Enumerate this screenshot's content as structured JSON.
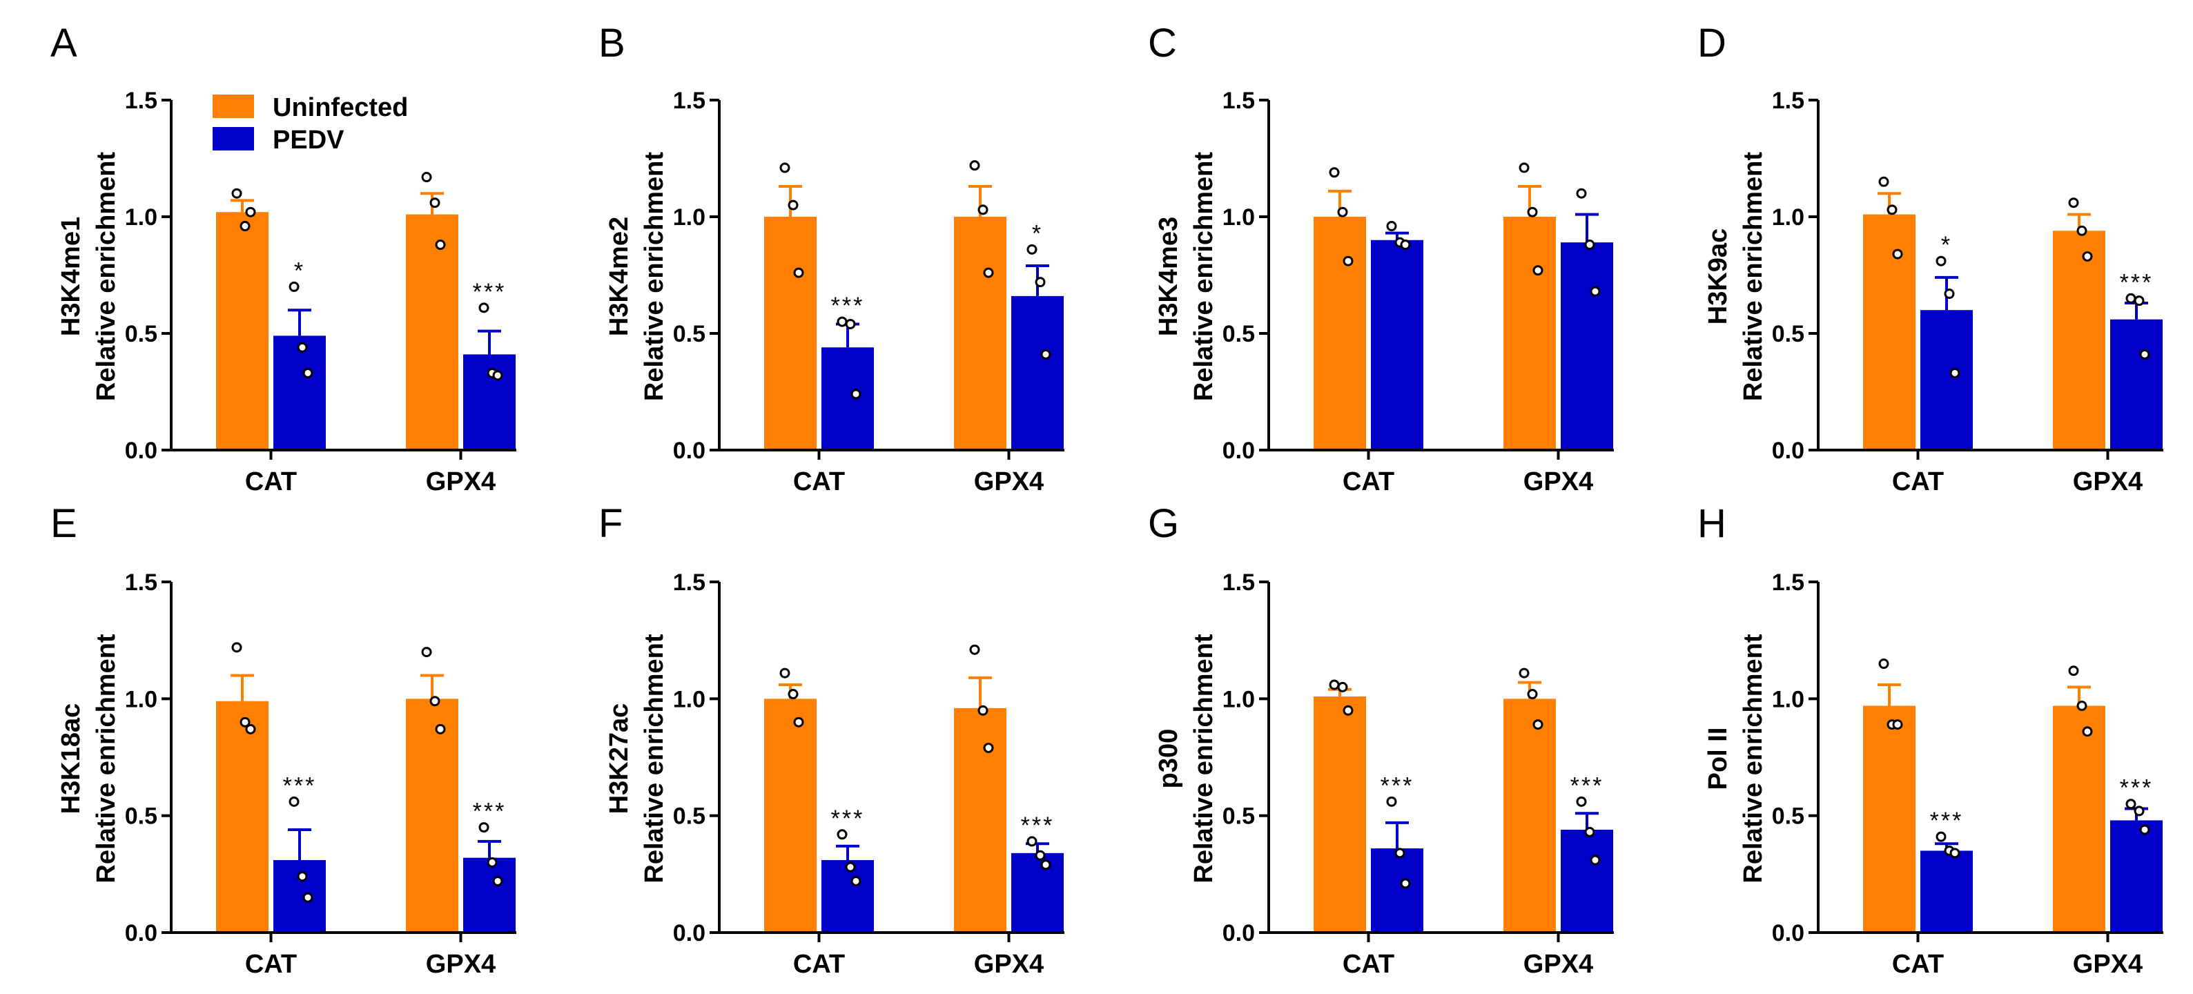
{
  "figure": {
    "legend": {
      "series_0": "Uninfected",
      "series_1": "PEDV"
    },
    "colors": {
      "uninfected": "#ff8000",
      "pedv": "#0000c8"
    }
  },
  "chart_data": [
    {
      "type": "bar",
      "panel": "A",
      "ylabel_top": "H3K4me1",
      "ylabel": "Relative enrichment",
      "ylim": [
        0,
        1.5
      ],
      "yticks": [
        "0.0",
        "0.5",
        "1.0",
        "1.5"
      ],
      "categories": [
        "CAT",
        "GPX4"
      ],
      "series": [
        {
          "name": "Uninfected",
          "values": [
            1.02,
            1.01
          ],
          "errors": [
            0.05,
            0.09
          ],
          "points": [
            [
              1.1,
              0.96,
              1.02
            ],
            [
              1.17,
              1.06,
              0.88
            ]
          ],
          "sig": [
            "",
            ""
          ]
        },
        {
          "name": "PEDV",
          "values": [
            0.49,
            0.41
          ],
          "errors": [
            0.11,
            0.1
          ],
          "points": [
            [
              0.7,
              0.44,
              0.33
            ],
            [
              0.61,
              0.33,
              0.32
            ]
          ],
          "sig": [
            "*",
            "***"
          ]
        }
      ]
    },
    {
      "type": "bar",
      "panel": "B",
      "ylabel_top": "H3K4me2",
      "ylabel": "Relative enrichment",
      "ylim": [
        0,
        1.5
      ],
      "yticks": [
        "0.0",
        "0.5",
        "1.0",
        "1.5"
      ],
      "categories": [
        "CAT",
        "GPX4"
      ],
      "series": [
        {
          "name": "Uninfected",
          "values": [
            1.0,
            1.0
          ],
          "errors": [
            0.13,
            0.13
          ],
          "points": [
            [
              1.21,
              1.05,
              0.76
            ],
            [
              1.22,
              1.03,
              0.76
            ]
          ],
          "sig": [
            "",
            ""
          ]
        },
        {
          "name": "PEDV",
          "values": [
            0.44,
            0.66
          ],
          "errors": [
            0.1,
            0.13
          ],
          "points": [
            [
              0.55,
              0.54,
              0.24
            ],
            [
              0.86,
              0.72,
              0.41
            ]
          ],
          "sig": [
            "***",
            "*"
          ]
        }
      ]
    },
    {
      "type": "bar",
      "panel": "C",
      "ylabel_top": "H3K4me3",
      "ylabel": "Relative enrichment",
      "ylim": [
        0,
        1.5
      ],
      "yticks": [
        "0.0",
        "0.5",
        "1.0",
        "1.5"
      ],
      "categories": [
        "CAT",
        "GPX4"
      ],
      "series": [
        {
          "name": "Uninfected",
          "values": [
            1.0,
            1.0
          ],
          "errors": [
            0.11,
            0.13
          ],
          "points": [
            [
              1.19,
              1.02,
              0.81
            ],
            [
              1.21,
              1.02,
              0.77
            ]
          ],
          "sig": [
            "",
            ""
          ]
        },
        {
          "name": "PEDV",
          "values": [
            0.9,
            0.89
          ],
          "errors": [
            0.03,
            0.12
          ],
          "points": [
            [
              0.96,
              0.89,
              0.88
            ],
            [
              1.1,
              0.88,
              0.68
            ]
          ],
          "sig": [
            "",
            ""
          ]
        }
      ]
    },
    {
      "type": "bar",
      "panel": "D",
      "ylabel_top": "H3K9ac",
      "ylabel": "Relative enrichment",
      "ylim": [
        0,
        1.5
      ],
      "yticks": [
        "0.0",
        "0.5",
        "1.0",
        "1.5"
      ],
      "categories": [
        "CAT",
        "GPX4"
      ],
      "series": [
        {
          "name": "Uninfected",
          "values": [
            1.01,
            0.94
          ],
          "errors": [
            0.09,
            0.07
          ],
          "points": [
            [
              1.15,
              1.03,
              0.84
            ],
            [
              1.06,
              0.94,
              0.83
            ]
          ],
          "sig": [
            "",
            ""
          ]
        },
        {
          "name": "PEDV",
          "values": [
            0.6,
            0.56
          ],
          "errors": [
            0.14,
            0.07
          ],
          "points": [
            [
              0.81,
              0.67,
              0.33
            ],
            [
              0.65,
              0.64,
              0.41
            ]
          ],
          "sig": [
            "*",
            "***"
          ]
        }
      ]
    },
    {
      "type": "bar",
      "panel": "E",
      "ylabel_top": "H3K18ac",
      "ylabel": "Relative enrichment",
      "ylim": [
        0,
        1.5
      ],
      "yticks": [
        "0.0",
        "0.5",
        "1.0",
        "1.5"
      ],
      "categories": [
        "CAT",
        "GPX4"
      ],
      "series": [
        {
          "name": "Uninfected",
          "values": [
            0.99,
            1.0
          ],
          "errors": [
            0.11,
            0.1
          ],
          "points": [
            [
              1.22,
              0.9,
              0.87
            ],
            [
              1.2,
              0.99,
              0.87
            ]
          ],
          "sig": [
            "",
            ""
          ]
        },
        {
          "name": "PEDV",
          "values": [
            0.31,
            0.32
          ],
          "errors": [
            0.13,
            0.07
          ],
          "points": [
            [
              0.56,
              0.24,
              0.15
            ],
            [
              0.45,
              0.3,
              0.22
            ]
          ],
          "sig": [
            "***",
            "***"
          ]
        }
      ]
    },
    {
      "type": "bar",
      "panel": "F",
      "ylabel_top": "H3K27ac",
      "ylabel": "Relative enrichment",
      "ylim": [
        0,
        1.5
      ],
      "yticks": [
        "0.0",
        "0.5",
        "1.0",
        "1.5"
      ],
      "categories": [
        "CAT",
        "GPX4"
      ],
      "series": [
        {
          "name": "Uninfected",
          "values": [
            1.0,
            0.96
          ],
          "errors": [
            0.06,
            0.13
          ],
          "points": [
            [
              1.11,
              1.02,
              0.9
            ],
            [
              1.21,
              0.95,
              0.79
            ]
          ],
          "sig": [
            "",
            ""
          ]
        },
        {
          "name": "PEDV",
          "values": [
            0.31,
            0.34
          ],
          "errors": [
            0.06,
            0.04
          ],
          "points": [
            [
              0.42,
              0.28,
              0.22
            ],
            [
              0.39,
              0.33,
              0.29
            ]
          ],
          "sig": [
            "***",
            "***"
          ]
        }
      ]
    },
    {
      "type": "bar",
      "panel": "G",
      "ylabel_top": "p300",
      "ylabel": "Relative enrichment",
      "ylim": [
        0,
        1.5
      ],
      "yticks": [
        "0.0",
        "0.5",
        "1.0",
        "1.5"
      ],
      "categories": [
        "CAT",
        "GPX4"
      ],
      "series": [
        {
          "name": "Uninfected",
          "values": [
            1.01,
            1.0
          ],
          "errors": [
            0.03,
            0.07
          ],
          "points": [
            [
              1.06,
              1.05,
              0.95
            ],
            [
              1.11,
              1.02,
              0.89
            ]
          ],
          "sig": [
            "",
            ""
          ]
        },
        {
          "name": "PEDV",
          "values": [
            0.36,
            0.44
          ],
          "errors": [
            0.11,
            0.07
          ],
          "points": [
            [
              0.56,
              0.34,
              0.21
            ],
            [
              0.56,
              0.43,
              0.31
            ]
          ],
          "sig": [
            "***",
            "***"
          ]
        }
      ]
    },
    {
      "type": "bar",
      "panel": "H",
      "ylabel_top": "Pol II",
      "ylabel": "Relative enrichment",
      "ylim": [
        0,
        1.5
      ],
      "yticks": [
        "0.0",
        "0.5",
        "1.0",
        "1.5"
      ],
      "categories": [
        "CAT",
        "GPX4"
      ],
      "series": [
        {
          "name": "Uninfected",
          "values": [
            0.97,
            0.97
          ],
          "errors": [
            0.09,
            0.08
          ],
          "points": [
            [
              1.15,
              0.89,
              0.89
            ],
            [
              1.12,
              0.97,
              0.86
            ]
          ],
          "sig": [
            "",
            ""
          ]
        },
        {
          "name": "PEDV",
          "values": [
            0.35,
            0.48
          ],
          "errors": [
            0.03,
            0.05
          ],
          "points": [
            [
              0.41,
              0.35,
              0.34
            ],
            [
              0.55,
              0.52,
              0.44
            ]
          ],
          "sig": [
            "***",
            "***"
          ]
        }
      ]
    }
  ]
}
